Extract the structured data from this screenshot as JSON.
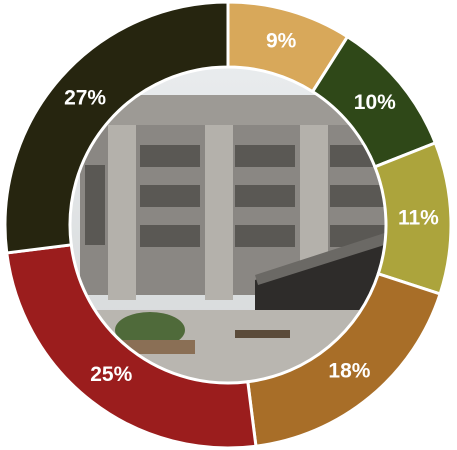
{
  "chart_data": {
    "type": "donut",
    "values": [
      9,
      10,
      11,
      18,
      25,
      27
    ],
    "value_labels": [
      "9%",
      "10%",
      "11%",
      "18%",
      "25%",
      "27%"
    ],
    "colors": [
      "#d8a85a",
      "#2f4818",
      "#aca43c",
      "#a86e28",
      "#9b1d1d",
      "#26250f"
    ]
  }
}
